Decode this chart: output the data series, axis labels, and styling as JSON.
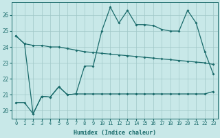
{
  "xlabel": "Humidex (Indice chaleur)",
  "background_color": "#c8e8e8",
  "grid_color": "#a0c8c8",
  "line_color": "#1a6b6b",
  "xlim": [
    -0.5,
    23.5
  ],
  "ylim": [
    19.5,
    26.8
  ],
  "yticks": [
    20,
    21,
    22,
    23,
    24,
    25,
    26
  ],
  "xticks": [
    0,
    1,
    2,
    3,
    4,
    5,
    6,
    7,
    8,
    9,
    10,
    11,
    12,
    13,
    14,
    15,
    16,
    17,
    18,
    19,
    20,
    21,
    22,
    23
  ],
  "line1_x": [
    0,
    1,
    2,
    3,
    4,
    5,
    6,
    7,
    8,
    9,
    10,
    11,
    12,
    13,
    14,
    15,
    16,
    17,
    18,
    19,
    20,
    21,
    22,
    23
  ],
  "line1_y": [
    24.7,
    24.2,
    24.1,
    24.1,
    24.0,
    24.0,
    23.9,
    23.8,
    23.7,
    23.65,
    23.6,
    23.55,
    23.5,
    23.45,
    23.4,
    23.35,
    23.3,
    23.25,
    23.2,
    23.15,
    23.1,
    23.05,
    23.0,
    22.9
  ],
  "line2_x": [
    0,
    1,
    2,
    3,
    4,
    5,
    6,
    7,
    8,
    9,
    10,
    11,
    12,
    13,
    14,
    15,
    16,
    17,
    18,
    19,
    20,
    21,
    22,
    23
  ],
  "line2_y": [
    24.7,
    24.2,
    19.8,
    20.9,
    20.85,
    21.5,
    21.0,
    21.05,
    22.8,
    22.8,
    25.0,
    26.5,
    25.5,
    26.3,
    25.4,
    25.4,
    25.35,
    25.1,
    25.0,
    25.0,
    26.3,
    25.5,
    23.7,
    22.3
  ],
  "line3_x": [
    0,
    1,
    2,
    3,
    4,
    5,
    6,
    7,
    8,
    9,
    10,
    11,
    12,
    13,
    14,
    15,
    16,
    17,
    18,
    19,
    20,
    21,
    22,
    23
  ],
  "line3_y": [
    20.5,
    20.5,
    19.8,
    20.9,
    20.85,
    21.5,
    21.0,
    21.05,
    21.05,
    21.05,
    21.05,
    21.05,
    21.05,
    21.05,
    21.05,
    21.05,
    21.05,
    21.05,
    21.05,
    21.05,
    21.05,
    21.05,
    21.05,
    21.2
  ]
}
